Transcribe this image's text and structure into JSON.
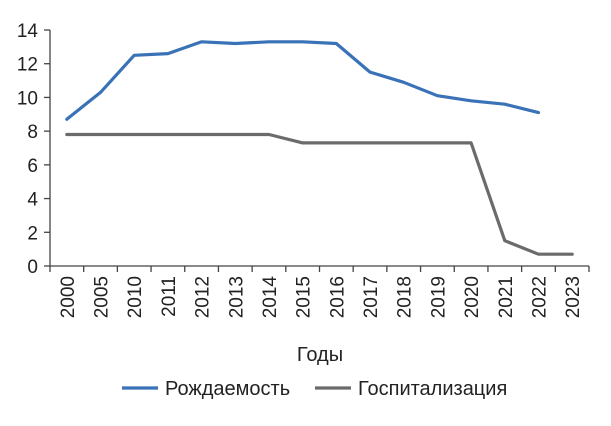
{
  "chart_data": {
    "type": "line",
    "title": "",
    "xlabel": "Годы",
    "ylabel": "",
    "categories": [
      "2000",
      "2005",
      "2010",
      "2011",
      "2012",
      "2013",
      "2014",
      "2015",
      "2016",
      "2017",
      "2018",
      "2019",
      "2020",
      "2021",
      "2022",
      "2023"
    ],
    "ylim": [
      0,
      14
    ],
    "yticks": [
      0,
      2,
      4,
      6,
      8,
      10,
      12,
      14
    ],
    "grid": false,
    "legend_position": "bottom",
    "series": [
      {
        "name": "Рождаемость",
        "color": "#3a72b8",
        "values": [
          8.7,
          10.3,
          12.5,
          12.6,
          13.3,
          13.2,
          13.3,
          13.3,
          13.2,
          11.5,
          10.9,
          10.1,
          9.8,
          9.6,
          9.1,
          null
        ]
      },
      {
        "name": "Госпитализация",
        "color": "#6b6b6b",
        "values": [
          7.8,
          7.8,
          7.8,
          7.8,
          7.8,
          7.8,
          7.8,
          7.3,
          7.3,
          7.3,
          7.3,
          7.3,
          7.3,
          1.5,
          0.7,
          0.7
        ]
      }
    ]
  }
}
